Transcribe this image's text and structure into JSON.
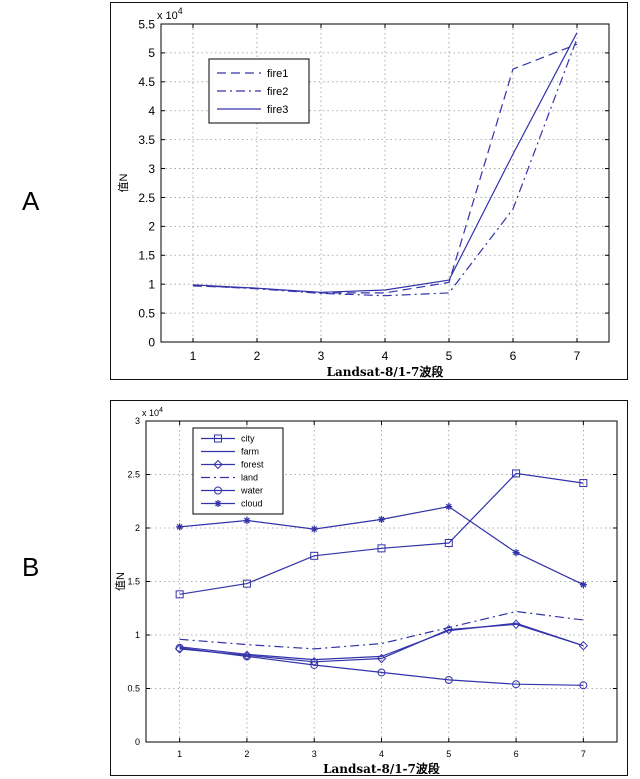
{
  "panels": {
    "a_label": "A",
    "b_label": "B"
  },
  "chart_data": [
    {
      "type": "line",
      "title": "",
      "xlabel": "Landsat-8/1-7波段",
      "ylabel": "值N",
      "exponent_label": "x 10",
      "exponent_power": "4",
      "x": [
        1,
        2,
        3,
        4,
        5,
        6,
        7
      ],
      "xlim": [
        0.5,
        7.5
      ],
      "ylim": [
        0,
        5.5
      ],
      "yticks": [
        0,
        0.5,
        1,
        1.5,
        2,
        2.5,
        3,
        3.5,
        4,
        4.5,
        5,
        5.5
      ],
      "ytick_labels": [
        "0",
        "0.5",
        "1",
        "1.5",
        "2",
        "2.5",
        "3",
        "3.5",
        "4",
        "4.5",
        "5",
        "5.5"
      ],
      "xtick_labels": [
        "1",
        "2",
        "3",
        "4",
        "5",
        "6",
        "7"
      ],
      "grid": true,
      "legend_position": "top-left",
      "color": "#3333aa",
      "series": [
        {
          "name": "fire1",
          "style": "dashed",
          "values": [
            0.97,
            0.93,
            0.85,
            0.85,
            1.03,
            4.72,
            5.15
          ]
        },
        {
          "name": "fire2",
          "style": "dashdot",
          "values": [
            0.98,
            0.92,
            0.84,
            0.8,
            0.85,
            2.3,
            5.25
          ]
        },
        {
          "name": "fire3",
          "style": "solid",
          "values": [
            0.99,
            0.93,
            0.86,
            0.9,
            1.07,
            3.25,
            5.35
          ]
        }
      ]
    },
    {
      "type": "line",
      "title": "",
      "xlabel": "Landsat-8/1-7波段",
      "ylabel": "值N",
      "exponent_label": "x 10",
      "exponent_power": "4",
      "x": [
        1,
        2,
        3,
        4,
        5,
        6,
        7
      ],
      "xlim": [
        0.5,
        7.5
      ],
      "ylim": [
        0,
        3
      ],
      "yticks": [
        0,
        0.5,
        1,
        1.5,
        2,
        2.5,
        3
      ],
      "ytick_labels": [
        "0",
        "0.5",
        "1",
        "1.5",
        "2",
        "2.5",
        "3"
      ],
      "xtick_labels": [
        "1",
        "2",
        "3",
        "4",
        "5",
        "6",
        "7"
      ],
      "grid": true,
      "legend_position": "top-left",
      "color": "#3333aa",
      "series": [
        {
          "name": "city",
          "style": "solid",
          "marker": "square",
          "values": [
            1.38,
            1.48,
            1.74,
            1.81,
            1.86,
            2.51,
            2.42
          ]
        },
        {
          "name": "farm",
          "style": "solid",
          "marker": "none",
          "values": [
            0.89,
            0.82,
            0.77,
            0.8,
            1.04,
            1.11,
            0.9
          ]
        },
        {
          "name": "forest",
          "style": "solid",
          "marker": "diamond",
          "values": [
            0.87,
            0.81,
            0.75,
            0.78,
            1.05,
            1.1,
            0.9
          ]
        },
        {
          "name": "land",
          "style": "dashdot",
          "marker": "none",
          "values": [
            0.96,
            0.91,
            0.87,
            0.92,
            1.07,
            1.22,
            1.14
          ]
        },
        {
          "name": "water",
          "style": "solid",
          "marker": "circle",
          "values": [
            0.88,
            0.8,
            0.72,
            0.65,
            0.58,
            0.54,
            0.53
          ]
        },
        {
          "name": "cloud",
          "style": "solid",
          "marker": "star",
          "values": [
            2.01,
            2.07,
            1.99,
            2.08,
            2.2,
            1.77,
            1.47
          ]
        }
      ]
    }
  ]
}
